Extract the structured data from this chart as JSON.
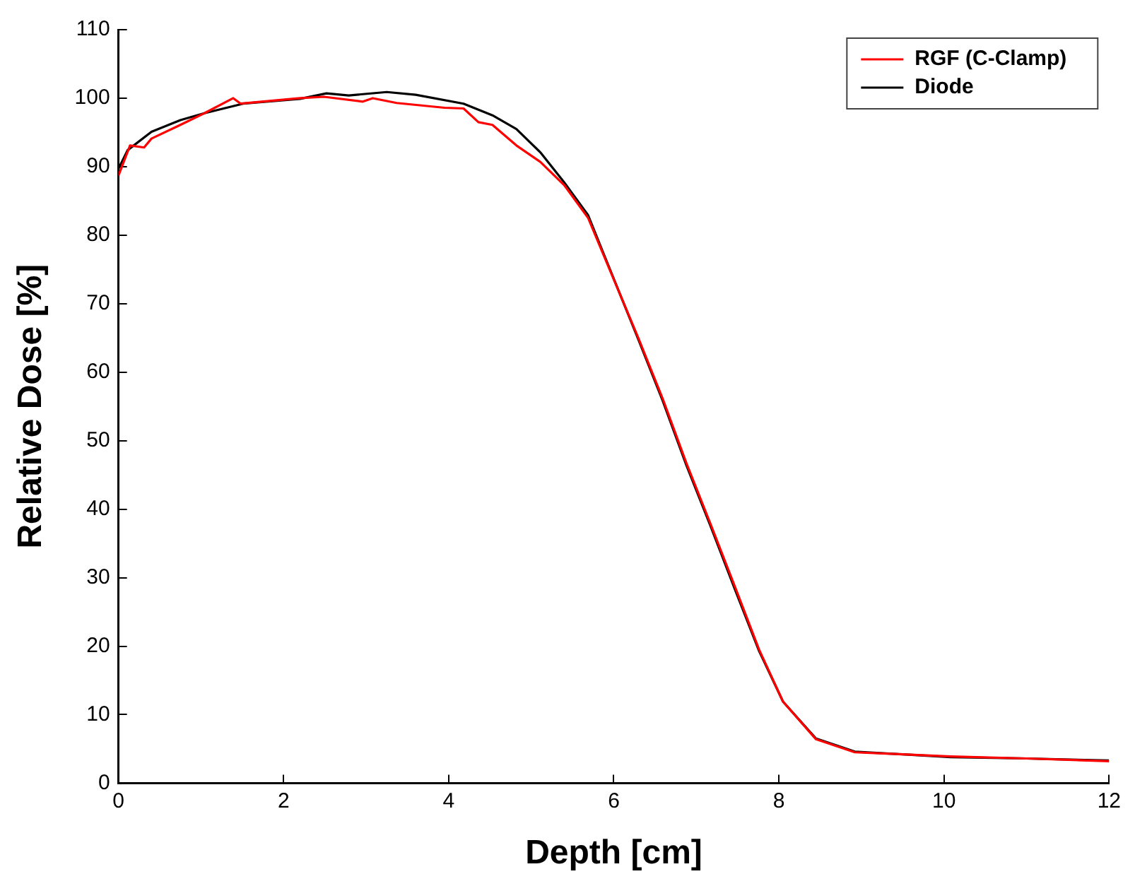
{
  "chart_data": {
    "type": "line",
    "xlabel": "Depth [cm]",
    "ylabel": "Relative Dose [%]",
    "xlim": [
      0,
      12
    ],
    "xticks": [
      0,
      2,
      4,
      6,
      8,
      10,
      12
    ],
    "ylim": [
      0,
      110
    ],
    "yticks": [
      0,
      10,
      20,
      30,
      40,
      50,
      60,
      70,
      80,
      90,
      100,
      110
    ],
    "grid": false,
    "legend": "top right",
    "marker": "none",
    "line_style": "solid",
    "series": [
      {
        "name": "RGF (C-Clamp)",
        "color": "#ff0000",
        "x": [
          0,
          0.14,
          0.31,
          0.4,
          0.75,
          1.04,
          1.39,
          1.48,
          2.2,
          2.49,
          2.96,
          3.08,
          3.37,
          3.95,
          4.18,
          4.36,
          4.53,
          4.82,
          5.11,
          5.4,
          5.69,
          5.87,
          6.3,
          6.59,
          6.88,
          7.17,
          7.47,
          7.76,
          8.05,
          8.45,
          8.92,
          9.5,
          10.08,
          11,
          12
        ],
        "values": [
          88.7,
          93.1,
          92.8,
          94.1,
          96.1,
          97.8,
          100,
          99.2,
          100,
          100.2,
          99.5,
          100,
          99.3,
          98.6,
          98.5,
          96.5,
          96.1,
          93.1,
          90.7,
          87.3,
          82.5,
          77.3,
          64.9,
          56.2,
          46.7,
          37.9,
          28.6,
          19.5,
          11.9,
          6.4,
          4.5,
          4.2,
          3.9,
          3.6,
          3.2
        ]
      },
      {
        "name": "Diode",
        "color": "#000000",
        "x": [
          0,
          0.11,
          0.4,
          0.75,
          1.04,
          1.51,
          2.2,
          2.52,
          2.79,
          3.25,
          3.6,
          4.18,
          4.53,
          4.82,
          5.11,
          5.4,
          5.69,
          5.87,
          6.3,
          6.59,
          6.88,
          7.17,
          7.47,
          7.76,
          8.05,
          8.45,
          8.92,
          9.5,
          10.08,
          11,
          12
        ],
        "values": [
          89.7,
          92.4,
          95.1,
          96.8,
          97.8,
          99.2,
          99.9,
          100.7,
          100.4,
          100.9,
          100.5,
          99.2,
          97.5,
          95.5,
          92.1,
          87.7,
          82.9,
          77.5,
          64.7,
          55.9,
          46.4,
          37.6,
          28.2,
          19.3,
          11.9,
          6.5,
          4.6,
          4.2,
          3.8,
          3.6,
          3.3
        ]
      }
    ]
  }
}
